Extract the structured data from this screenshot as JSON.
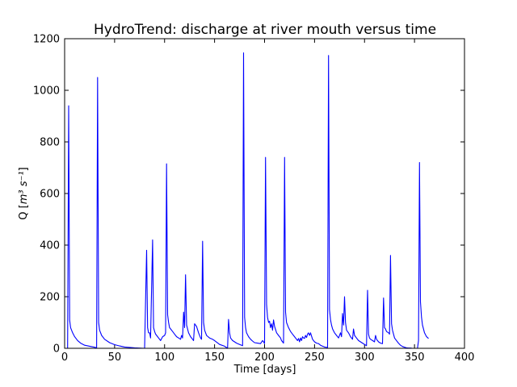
{
  "chart_data": {
    "type": "line",
    "title": "HydroTrend: discharge at river mouth versus time",
    "xlabel": "Time [days]",
    "ylabel_prefix": "Q [",
    "ylabel_unit": "m³ s⁻¹",
    "ylabel_suffix": "]",
    "xlim": [
      0,
      400
    ],
    "ylim": [
      0,
      1200
    ],
    "xticks": [
      0,
      50,
      100,
      150,
      200,
      250,
      300,
      350,
      400
    ],
    "yticks": [
      0,
      200,
      400,
      600,
      800,
      1000,
      1200
    ],
    "grid": false,
    "line_color": "#0000ff",
    "series": [
      {
        "x": [
          3,
          4,
          5,
          6,
          8,
          10,
          13,
          16,
          20,
          25,
          30,
          32,
          33,
          34,
          35,
          37,
          40,
          45,
          50,
          55,
          60,
          70,
          80,
          82,
          83,
          84,
          85,
          86,
          88,
          89,
          90,
          91,
          92,
          94,
          96,
          98,
          100,
          101,
          102,
          103,
          104,
          105,
          106,
          108,
          110,
          112,
          114,
          116,
          117,
          118,
          119,
          120,
          121,
          122,
          124,
          126,
          128,
          129,
          130,
          132,
          134,
          136,
          137,
          138,
          139,
          140,
          142,
          145,
          148,
          150,
          155,
          160,
          163,
          164,
          165,
          166,
          168,
          170,
          172,
          175,
          178,
          179,
          180,
          181,
          182,
          184,
          186,
          188,
          190,
          193,
          196,
          198,
          199,
          200,
          201,
          202,
          203,
          204,
          205,
          206,
          207,
          208,
          209,
          210,
          212,
          214,
          216,
          217,
          218,
          219,
          220,
          221,
          222,
          224,
          226,
          228,
          230,
          232,
          233,
          234,
          235,
          236,
          237,
          238,
          239,
          240,
          241,
          242,
          243,
          244,
          245,
          246,
          248,
          250,
          252,
          254,
          256,
          258,
          260,
          263,
          264,
          265,
          266,
          267,
          268,
          270,
          272,
          274,
          276,
          277,
          278,
          279,
          280,
          281,
          282,
          284,
          286,
          288,
          289,
          290,
          292,
          294,
          296,
          298,
          300,
          302,
          303,
          304,
          305,
          306,
          308,
          310,
          311,
          312,
          314,
          316,
          318,
          319,
          320,
          321,
          322,
          324,
          325,
          326,
          327,
          328,
          330,
          332,
          334,
          336,
          338,
          340,
          342,
          344,
          346,
          348,
          350,
          352,
          353,
          354,
          355,
          356,
          357,
          358,
          360,
          362,
          364
        ],
        "y": [
          0,
          940,
          110,
          80,
          60,
          45,
          30,
          20,
          12,
          8,
          4,
          2,
          1050,
          100,
          70,
          50,
          35,
          22,
          14,
          9,
          5,
          2,
          0,
          380,
          80,
          60,
          60,
          40,
          420,
          80,
          65,
          55,
          50,
          40,
          30,
          45,
          50,
          60,
          715,
          130,
          100,
          80,
          75,
          65,
          55,
          45,
          40,
          35,
          50,
          40,
          140,
          80,
          285,
          90,
          60,
          45,
          35,
          30,
          95,
          85,
          60,
          40,
          35,
          415,
          100,
          70,
          50,
          40,
          35,
          30,
          15,
          8,
          0,
          112,
          60,
          40,
          30,
          25,
          20,
          15,
          10,
          1145,
          120,
          80,
          60,
          45,
          35,
          28,
          22,
          20,
          18,
          30,
          25,
          18,
          740,
          170,
          120,
          100,
          105,
          80,
          95,
          70,
          110,
          85,
          60,
          50,
          40,
          30,
          25,
          20,
          740,
          140,
          100,
          80,
          65,
          55,
          45,
          35,
          30,
          38,
          25,
          40,
          30,
          45,
          40,
          38,
          50,
          42,
          55,
          60,
          50,
          60,
          35,
          25,
          20,
          18,
          12,
          8,
          5,
          3,
          1135,
          150,
          110,
          90,
          75,
          60,
          50,
          40,
          60,
          45,
          135,
          90,
          200,
          100,
          70,
          60,
          45,
          35,
          75,
          50,
          40,
          30,
          25,
          20,
          15,
          10,
          225,
          55,
          40,
          35,
          30,
          25,
          50,
          35,
          25,
          20,
          18,
          195,
          80,
          75,
          65,
          60,
          55,
          360,
          95,
          70,
          40,
          30,
          20,
          12,
          7,
          4,
          2,
          1,
          1,
          0,
          0,
          0,
          0,
          30,
          720,
          180,
          120,
          90,
          60,
          45,
          38
        ]
      }
    ]
  }
}
